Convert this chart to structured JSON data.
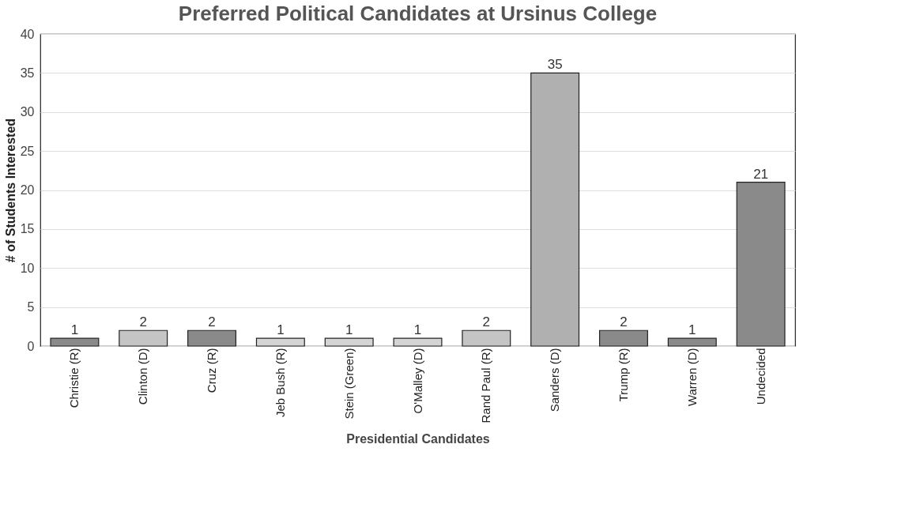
{
  "chart_data": {
    "type": "bar",
    "title": "Preferred Political Candidates at Ursinus College",
    "xlabel": "Presidential Candidates",
    "ylabel": "# of Students Interested",
    "categories": [
      "Christie (R)",
      "Clinton (D)",
      "Cruz (R)",
      "Jeb Bush (R)",
      "Stein (Green)",
      "O'Malley (D)",
      "Rand Paul (R)",
      "Sanders (D)",
      "Trump (R)",
      "Warren (D)",
      "Undecided"
    ],
    "values": [
      1,
      2,
      2,
      1,
      1,
      1,
      2,
      35,
      2,
      1,
      21
    ],
    "colors": [
      "#8a8a8a",
      "#c4c4c4",
      "#8a8a8a",
      "#d4d4d4",
      "#d4d4d4",
      "#d4d4d4",
      "#c4c4c4",
      "#b0b0b0",
      "#8a8a8a",
      "#8a8a8a",
      "#8a8a8a"
    ],
    "ylim": [
      0,
      40
    ],
    "yticks": [
      0,
      5,
      10,
      15,
      20,
      25,
      30,
      35,
      40
    ],
    "grid": "y",
    "data_labels": true
  }
}
